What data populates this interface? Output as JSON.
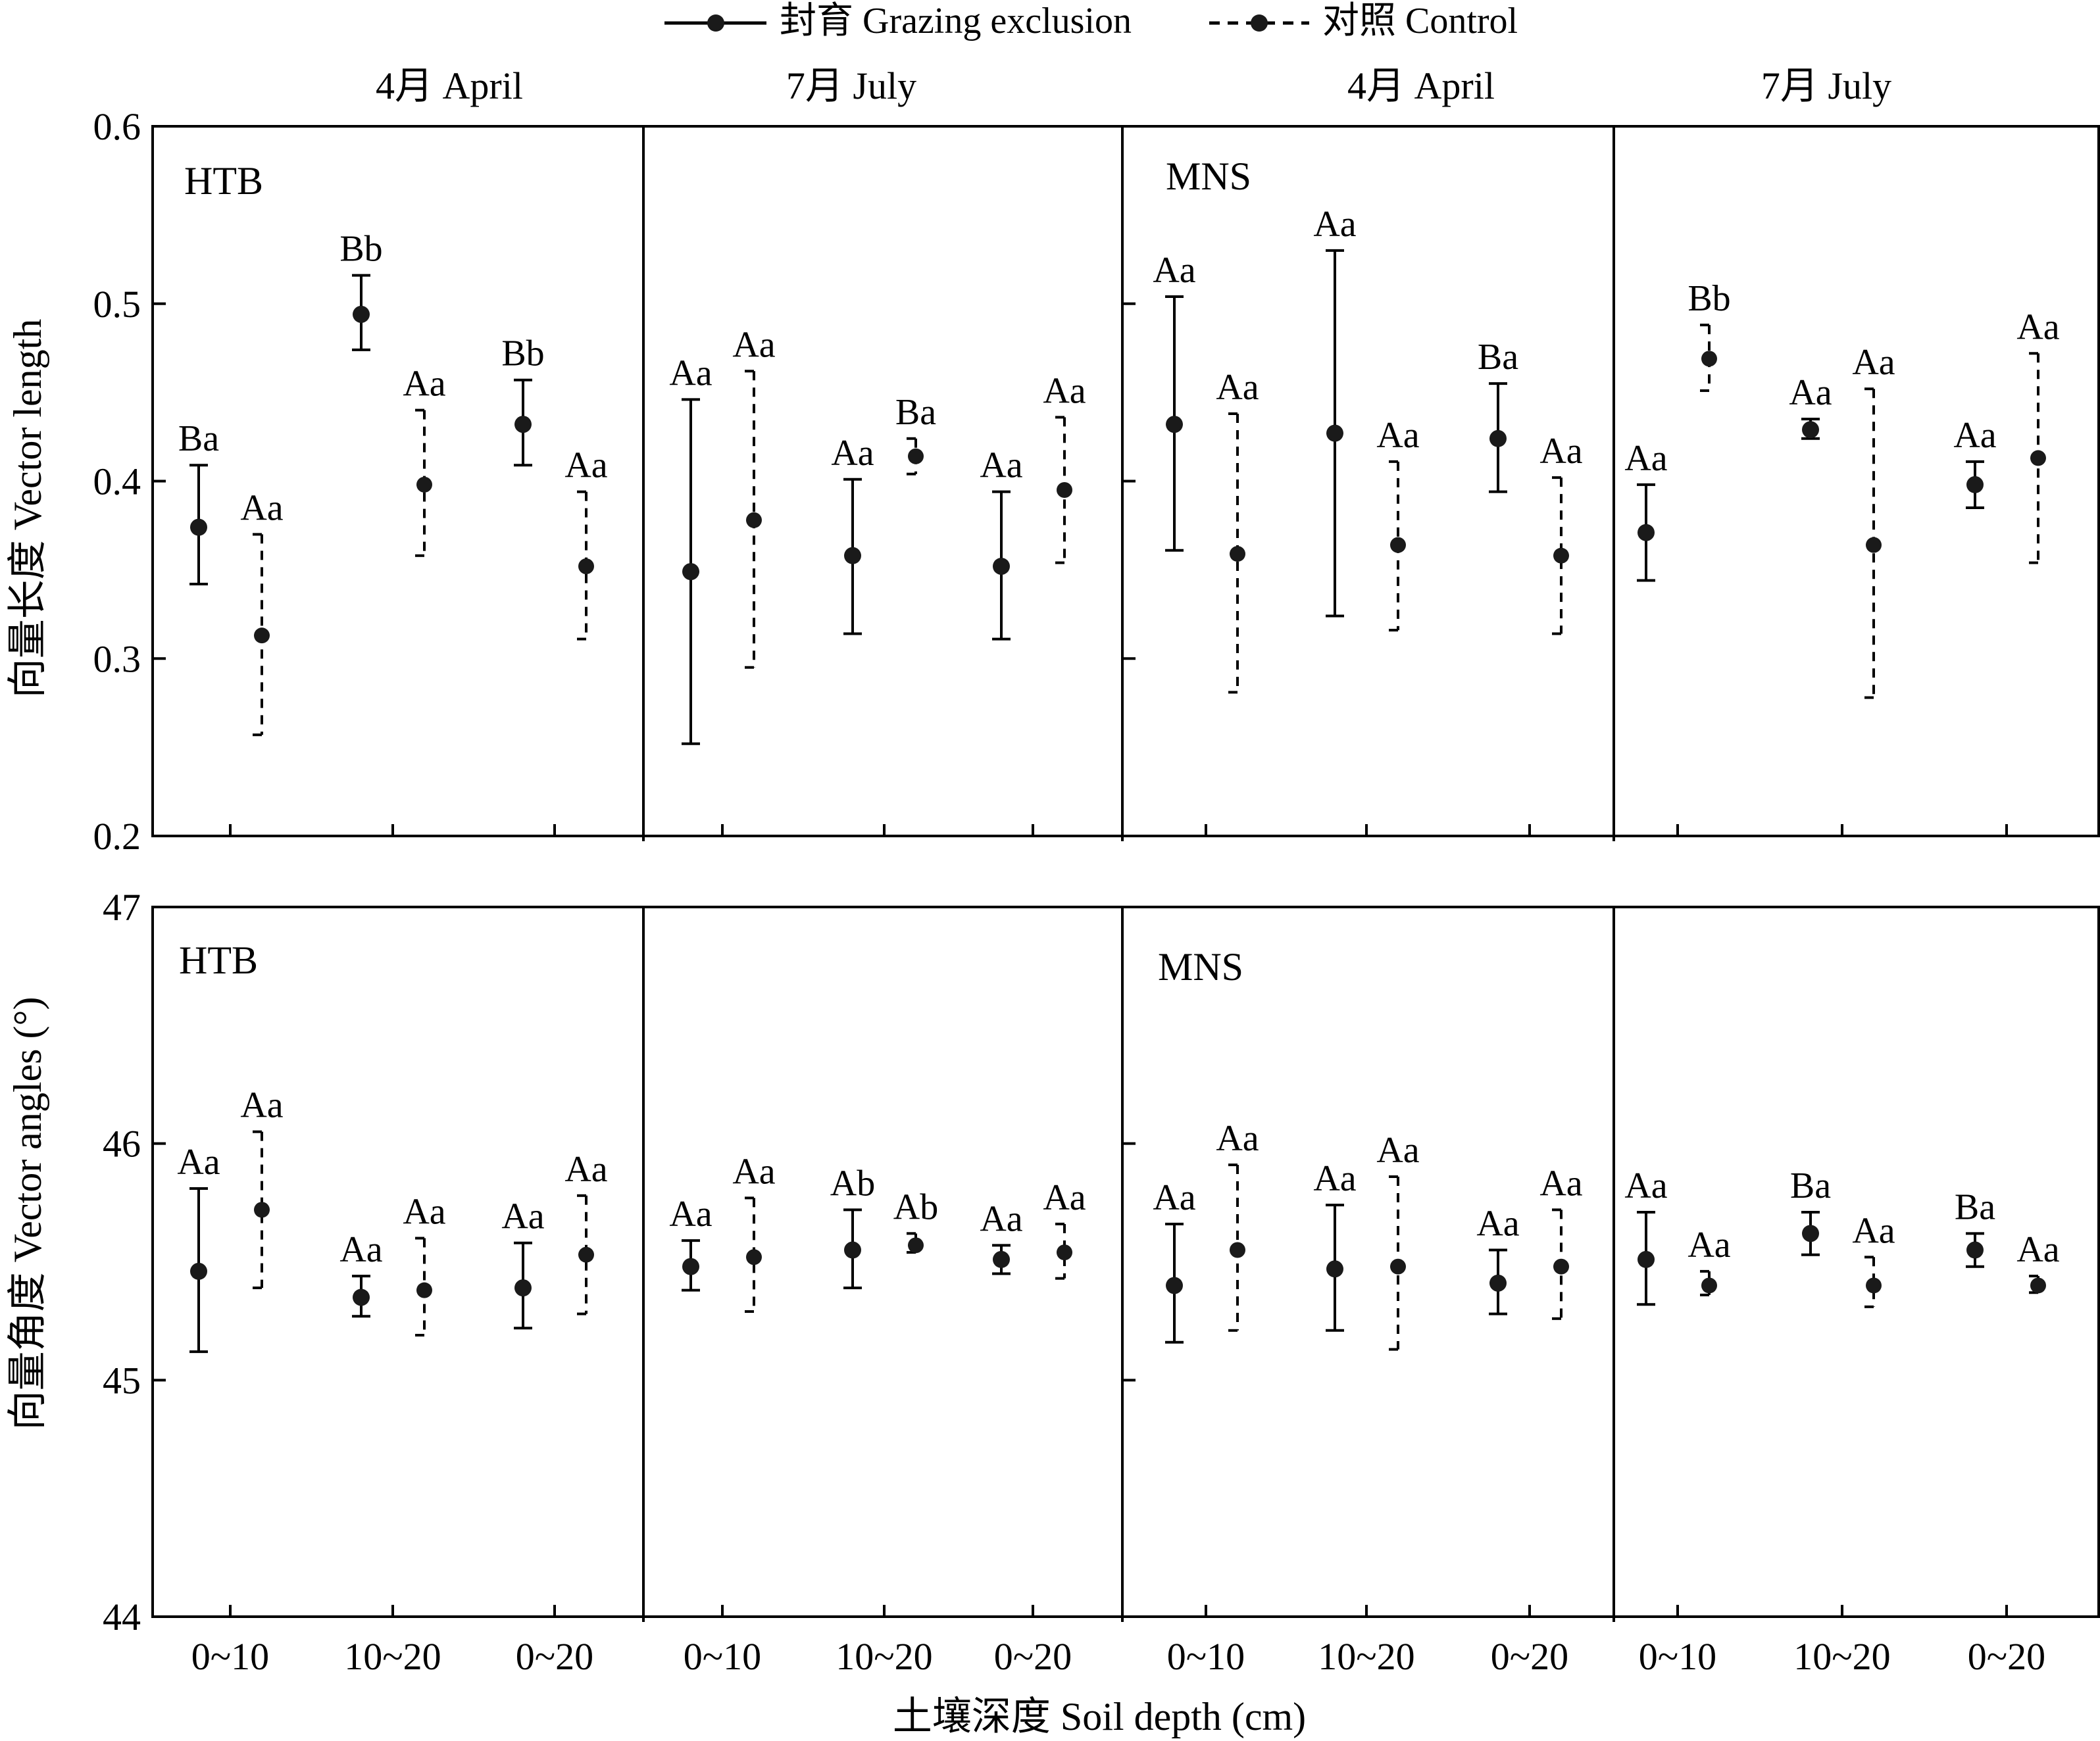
{
  "legend": {
    "grazing": "封育 Grazing exclusion",
    "control": "对照 Control"
  },
  "x_title": "土壤深度 Soil depth (cm)",
  "months": [
    "4月 April",
    "7月 July",
    "4月 April",
    "7月 July"
  ],
  "depths": [
    "0~10",
    "10~20",
    "0~20"
  ],
  "chart_data": [
    {
      "type": "scatter",
      "title": "Vector length",
      "ylabel": "向量长度 Vector length",
      "ylim": [
        0.2,
        0.6
      ],
      "yticks": [
        "0.2",
        "0.3",
        "0.4",
        "0.5",
        "0.6"
      ],
      "tick_values": [
        0.2,
        0.3,
        0.4,
        0.5,
        0.6
      ],
      "sites": [
        "HTB",
        "MNS"
      ],
      "panels": [
        {
          "site": "HTB",
          "month": "4月 April",
          "grazing": [
            {
              "m": 0.374,
              "lo": 0.342,
              "hi": 0.409,
              "label": "Ba"
            },
            {
              "m": 0.494,
              "lo": 0.474,
              "hi": 0.516,
              "label": "Bb"
            },
            {
              "m": 0.432,
              "lo": 0.409,
              "hi": 0.457,
              "label": "Bb"
            }
          ],
          "control": [
            {
              "m": 0.313,
              "lo": 0.257,
              "hi": 0.37,
              "label": "Aa"
            },
            {
              "m": 0.398,
              "lo": 0.358,
              "hi": 0.44,
              "label": "Aa"
            },
            {
              "m": 0.352,
              "lo": 0.311,
              "hi": 0.394,
              "label": "Aa"
            }
          ]
        },
        {
          "site": "",
          "month": "7月 July",
          "grazing": [
            {
              "m": 0.349,
              "lo": 0.252,
              "hi": 0.446,
              "label": "Aa"
            },
            {
              "m": 0.358,
              "lo": 0.314,
              "hi": 0.401,
              "label": "Aa"
            },
            {
              "m": 0.352,
              "lo": 0.311,
              "hi": 0.394,
              "label": "Aa"
            }
          ],
          "control": [
            {
              "m": 0.378,
              "lo": 0.295,
              "hi": 0.462,
              "label": "Aa"
            },
            {
              "m": 0.414,
              "lo": 0.404,
              "hi": 0.424,
              "label": "Ba"
            },
            {
              "m": 0.395,
              "lo": 0.354,
              "hi": 0.436,
              "label": "Aa"
            }
          ]
        },
        {
          "site": "MNS",
          "month": "4月 April",
          "grazing": [
            {
              "m": 0.432,
              "lo": 0.361,
              "hi": 0.504,
              "label": "Aa"
            },
            {
              "m": 0.427,
              "lo": 0.324,
              "hi": 0.53,
              "label": "Aa"
            },
            {
              "m": 0.424,
              "lo": 0.394,
              "hi": 0.455,
              "label": "Ba"
            }
          ],
          "control": [
            {
              "m": 0.359,
              "lo": 0.281,
              "hi": 0.438,
              "label": "Aa"
            },
            {
              "m": 0.364,
              "lo": 0.316,
              "hi": 0.411,
              "label": "Aa"
            },
            {
              "m": 0.358,
              "lo": 0.314,
              "hi": 0.402,
              "label": "Aa"
            }
          ]
        },
        {
          "site": "",
          "month": "7月 July",
          "grazing": [
            {
              "m": 0.371,
              "lo": 0.344,
              "hi": 0.398,
              "label": "Aa"
            },
            {
              "m": 0.429,
              "lo": 0.424,
              "hi": 0.435,
              "label": "Aa"
            },
            {
              "m": 0.398,
              "lo": 0.385,
              "hi": 0.411,
              "label": "Aa"
            }
          ],
          "control": [
            {
              "m": 0.469,
              "lo": 0.451,
              "hi": 0.488,
              "label": "Bb"
            },
            {
              "m": 0.364,
              "lo": 0.278,
              "hi": 0.452,
              "label": "Aa"
            },
            {
              "m": 0.413,
              "lo": 0.354,
              "hi": 0.472,
              "label": "Aa"
            }
          ]
        }
      ]
    },
    {
      "type": "scatter",
      "title": "Vector angles",
      "ylabel": "向量角度 Vector angles (°)",
      "ylim": [
        44,
        47
      ],
      "yticks": [
        "44",
        "45",
        "46",
        "47"
      ],
      "tick_values": [
        44,
        45,
        46,
        47
      ],
      "sites": [
        "HTB",
        "MNS"
      ],
      "panels": [
        {
          "site": "HTB",
          "month": "4月 April",
          "grazing": [
            {
              "m": 45.46,
              "lo": 45.12,
              "hi": 45.81,
              "label": "Aa"
            },
            {
              "m": 45.35,
              "lo": 45.27,
              "hi": 45.44,
              "label": "Aa"
            },
            {
              "m": 45.39,
              "lo": 45.22,
              "hi": 45.58,
              "label": "Aa"
            }
          ],
          "control": [
            {
              "m": 45.72,
              "lo": 45.39,
              "hi": 46.05,
              "label": "Aa"
            },
            {
              "m": 45.38,
              "lo": 45.19,
              "hi": 45.6,
              "label": "Aa"
            },
            {
              "m": 45.53,
              "lo": 45.28,
              "hi": 45.78,
              "label": "Aa"
            }
          ]
        },
        {
          "site": "",
          "month": "7月 July",
          "grazing": [
            {
              "m": 45.48,
              "lo": 45.38,
              "hi": 45.59,
              "label": "Aa"
            },
            {
              "m": 45.55,
              "lo": 45.39,
              "hi": 45.72,
              "label": "Ab"
            },
            {
              "m": 45.51,
              "lo": 45.45,
              "hi": 45.57,
              "label": "Aa"
            }
          ],
          "control": [
            {
              "m": 45.52,
              "lo": 45.29,
              "hi": 45.77,
              "label": "Aa"
            },
            {
              "m": 45.57,
              "lo": 45.54,
              "hi": 45.62,
              "label": "Ab"
            },
            {
              "m": 45.54,
              "lo": 45.43,
              "hi": 45.66,
              "label": "Aa"
            }
          ]
        },
        {
          "site": "MNS",
          "month": "4月 April",
          "grazing": [
            {
              "m": 45.4,
              "lo": 45.16,
              "hi": 45.66,
              "label": "Aa"
            },
            {
              "m": 45.47,
              "lo": 45.21,
              "hi": 45.74,
              "label": "Aa"
            },
            {
              "m": 45.41,
              "lo": 45.28,
              "hi": 45.55,
              "label": "Aa"
            }
          ],
          "control": [
            {
              "m": 45.55,
              "lo": 45.21,
              "hi": 45.91,
              "label": "Aa"
            },
            {
              "m": 45.48,
              "lo": 45.13,
              "hi": 45.86,
              "label": "Aa"
            },
            {
              "m": 45.48,
              "lo": 45.26,
              "hi": 45.72,
              "label": "Aa"
            }
          ]
        },
        {
          "site": "",
          "month": "7月 July",
          "grazing": [
            {
              "m": 45.51,
              "lo": 45.32,
              "hi": 45.71,
              "label": "Aa"
            },
            {
              "m": 45.62,
              "lo": 45.53,
              "hi": 45.71,
              "label": "Ba"
            },
            {
              "m": 45.55,
              "lo": 45.48,
              "hi": 45.62,
              "label": "Ba"
            }
          ],
          "control": [
            {
              "m": 45.4,
              "lo": 45.36,
              "hi": 45.46,
              "label": "Aa"
            },
            {
              "m": 45.4,
              "lo": 45.31,
              "hi": 45.52,
              "label": "Aa"
            },
            {
              "m": 45.4,
              "lo": 45.37,
              "hi": 45.44,
              "label": "Aa"
            }
          ]
        }
      ]
    }
  ]
}
